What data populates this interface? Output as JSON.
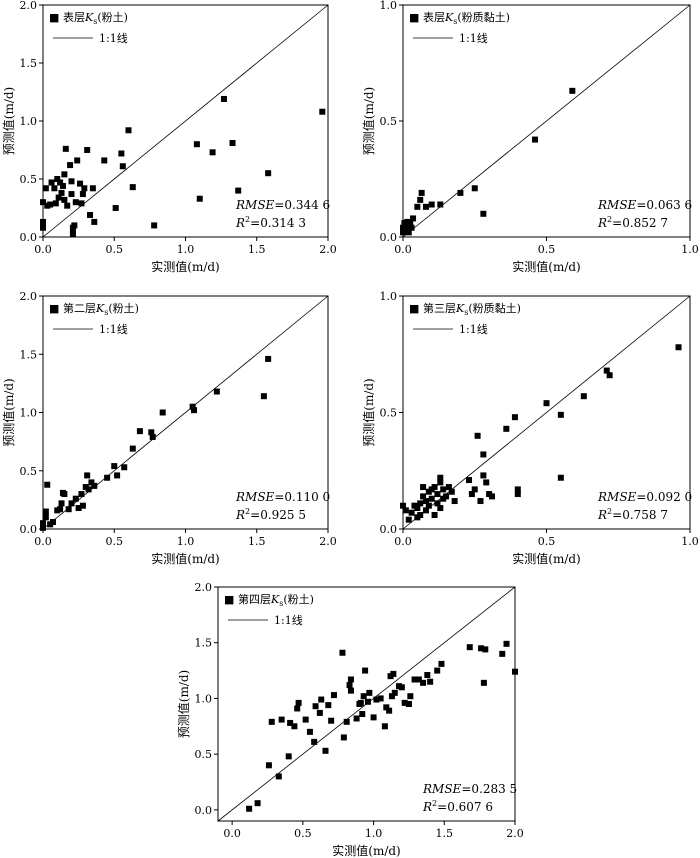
{
  "chart_data": [
    {
      "id": "p1",
      "type": "scatter",
      "legend": {
        "marker": "■",
        "name": "表层",
        "ks": "K",
        "sub": "s",
        "suffix": "(粉土)",
        "line_label": "1:1线"
      },
      "xlabel": "实测值(m/d)",
      "ylabel": "预测值(m/d)",
      "xlim": [
        0,
        2
      ],
      "ylim": [
        0,
        2
      ],
      "xticks": [
        "0.0",
        "0.5",
        "1.0",
        "1.5",
        "2.0"
      ],
      "yticks": [
        "0.0",
        "0.5",
        "1.0",
        "1.5",
        "2.0"
      ],
      "rmse_label": "RMSE",
      "rmse": "=0.344 6",
      "r2_label": "R",
      "r2_sup": "2",
      "r2": "=0.314 3",
      "reference_line": "1:1",
      "points": [
        [
          0.0,
          0.08
        ],
        [
          0.0,
          0.1
        ],
        [
          0.0,
          0.13
        ],
        [
          0.0,
          0.3
        ],
        [
          0.02,
          0.42
        ],
        [
          0.03,
          0.27
        ],
        [
          0.05,
          0.28
        ],
        [
          0.06,
          0.47
        ],
        [
          0.08,
          0.42
        ],
        [
          0.09,
          0.29
        ],
        [
          0.1,
          0.5
        ],
        [
          0.11,
          0.34
        ],
        [
          0.12,
          0.47
        ],
        [
          0.13,
          0.38
        ],
        [
          0.14,
          0.44
        ],
        [
          0.15,
          0.54
        ],
        [
          0.15,
          0.32
        ],
        [
          0.16,
          0.76
        ],
        [
          0.17,
          0.27
        ],
        [
          0.19,
          0.62
        ],
        [
          0.2,
          0.48
        ],
        [
          0.2,
          0.37
        ],
        [
          0.21,
          0.08
        ],
        [
          0.21,
          0.03
        ],
        [
          0.22,
          0.1
        ],
        [
          0.23,
          0.3
        ],
        [
          0.24,
          0.66
        ],
        [
          0.26,
          0.46
        ],
        [
          0.27,
          0.29
        ],
        [
          0.28,
          0.37
        ],
        [
          0.29,
          0.42
        ],
        [
          0.31,
          0.75
        ],
        [
          0.33,
          0.19
        ],
        [
          0.35,
          0.42
        ],
        [
          0.36,
          0.13
        ],
        [
          0.43,
          0.66
        ],
        [
          0.51,
          0.25
        ],
        [
          0.55,
          0.72
        ],
        [
          0.56,
          0.61
        ],
        [
          0.6,
          0.92
        ],
        [
          0.63,
          0.43
        ],
        [
          0.78,
          0.1
        ],
        [
          1.08,
          0.8
        ],
        [
          1.1,
          0.33
        ],
        [
          1.19,
          0.73
        ],
        [
          1.27,
          1.19
        ],
        [
          1.33,
          0.81
        ],
        [
          1.37,
          0.4
        ],
        [
          1.58,
          0.55
        ],
        [
          1.96,
          1.08
        ]
      ]
    },
    {
      "id": "p2",
      "type": "scatter",
      "legend": {
        "marker": "■",
        "name": "表层",
        "ks": "K",
        "sub": "s",
        "suffix": "(粉质黏土)",
        "line_label": "1:1线"
      },
      "xlabel": "实测值(m/d)",
      "ylabel": "预测值(m/d)",
      "xlim": [
        0,
        1
      ],
      "ylim": [
        0,
        1
      ],
      "xticks": [
        "0.0",
        "0.5",
        "1.0"
      ],
      "yticks": [
        "0.0",
        "0.5",
        "1.0"
      ],
      "rmse_label": "RMSE",
      "rmse": "=0.063 6",
      "r2_label": "R",
      "r2_sup": "2",
      "r2": "=0.852 7",
      "reference_line": "1:1",
      "points": [
        [
          0.0,
          0.02
        ],
        [
          0.0,
          0.04
        ],
        [
          0.005,
          0.06
        ],
        [
          0.01,
          0.03
        ],
        [
          0.01,
          0.05
        ],
        [
          0.015,
          0.065
        ],
        [
          0.02,
          0.02
        ],
        [
          0.025,
          0.06
        ],
        [
          0.03,
          0.04
        ],
        [
          0.035,
          0.08
        ],
        [
          0.05,
          0.13
        ],
        [
          0.06,
          0.16
        ],
        [
          0.065,
          0.19
        ],
        [
          0.08,
          0.13
        ],
        [
          0.1,
          0.14
        ],
        [
          0.13,
          0.14
        ],
        [
          0.2,
          0.19
        ],
        [
          0.25,
          0.21
        ],
        [
          0.28,
          0.1
        ],
        [
          0.46,
          0.42
        ],
        [
          0.59,
          0.63
        ]
      ]
    },
    {
      "id": "p3",
      "type": "scatter",
      "legend": {
        "marker": "■",
        "name": "第二层",
        "ks": "K",
        "sub": "s",
        "suffix": "(粉土)",
        "line_label": "1:1线"
      },
      "xlabel": "实测值(m/d)",
      "ylabel": "预测值(m/d)",
      "xlim": [
        0,
        2
      ],
      "ylim": [
        0,
        2
      ],
      "xticks": [
        "0.0",
        "0.5",
        "1.0",
        "1.5",
        "2.0"
      ],
      "yticks": [
        "0.0",
        "0.5",
        "1.0",
        "1.5",
        "2.0"
      ],
      "rmse_label": "RMSE",
      "rmse": "=0.110 0",
      "r2_label": "R",
      "r2_sup": "2",
      "r2": "=0.925 5",
      "reference_line": "1:1",
      "points": [
        [
          0.0,
          0.01
        ],
        [
          0.0,
          0.02
        ],
        [
          0.0,
          0.04
        ],
        [
          0.0,
          0.05
        ],
        [
          0.02,
          0.1
        ],
        [
          0.02,
          0.15
        ],
        [
          0.03,
          0.38
        ],
        [
          0.05,
          0.04
        ],
        [
          0.07,
          0.06
        ],
        [
          0.1,
          0.16
        ],
        [
          0.12,
          0.17
        ],
        [
          0.13,
          0.22
        ],
        [
          0.14,
          0.31
        ],
        [
          0.15,
          0.3
        ],
        [
          0.18,
          0.17
        ],
        [
          0.2,
          0.22
        ],
        [
          0.23,
          0.26
        ],
        [
          0.25,
          0.18
        ],
        [
          0.27,
          0.3
        ],
        [
          0.28,
          0.2
        ],
        [
          0.3,
          0.36
        ],
        [
          0.31,
          0.46
        ],
        [
          0.32,
          0.34
        ],
        [
          0.34,
          0.4
        ],
        [
          0.36,
          0.37
        ],
        [
          0.45,
          0.44
        ],
        [
          0.5,
          0.54
        ],
        [
          0.52,
          0.46
        ],
        [
          0.57,
          0.53
        ],
        [
          0.63,
          0.69
        ],
        [
          0.68,
          0.84
        ],
        [
          0.76,
          0.83
        ],
        [
          0.77,
          0.79
        ],
        [
          0.84,
          1.0
        ],
        [
          1.05,
          1.05
        ],
        [
          1.06,
          1.02
        ],
        [
          1.22,
          1.18
        ],
        [
          1.55,
          1.14
        ],
        [
          1.58,
          1.46
        ]
      ]
    },
    {
      "id": "p4",
      "type": "scatter",
      "legend": {
        "marker": "■",
        "name": "第三层",
        "ks": "K",
        "sub": "s",
        "suffix": "(粉质黏土)",
        "line_label": "1:1线"
      },
      "xlabel": "实测值(m/d)",
      "ylabel": "预测值(m/d)",
      "xlim": [
        0,
        1
      ],
      "ylim": [
        0,
        1
      ],
      "xticks": [
        "0.0",
        "0.5",
        "1.0"
      ],
      "yticks": [
        "0.0",
        "0.5",
        "1.0"
      ],
      "rmse_label": "RMSE",
      "rmse": "=0.092 0",
      "r2_label": "R",
      "r2_sup": "2",
      "r2": "=0.758 7",
      "reference_line": "1:1",
      "points": [
        [
          0.0,
          0.1
        ],
        [
          0.01,
          0.08
        ],
        [
          0.02,
          0.04
        ],
        [
          0.03,
          0.07
        ],
        [
          0.04,
          0.1
        ],
        [
          0.05,
          0.05
        ],
        [
          0.05,
          0.09
        ],
        [
          0.06,
          0.11
        ],
        [
          0.06,
          0.06
        ],
        [
          0.07,
          0.14
        ],
        [
          0.07,
          0.18
        ],
        [
          0.08,
          0.08
        ],
        [
          0.08,
          0.12
        ],
        [
          0.09,
          0.1
        ],
        [
          0.09,
          0.16
        ],
        [
          0.1,
          0.13
        ],
        [
          0.1,
          0.17
        ],
        [
          0.11,
          0.06
        ],
        [
          0.11,
          0.18
        ],
        [
          0.12,
          0.11
        ],
        [
          0.12,
          0.15
        ],
        [
          0.13,
          0.22
        ],
        [
          0.13,
          0.2
        ],
        [
          0.13,
          0.09
        ],
        [
          0.14,
          0.17
        ],
        [
          0.14,
          0.13
        ],
        [
          0.15,
          0.14
        ],
        [
          0.16,
          0.18
        ],
        [
          0.17,
          0.16
        ],
        [
          0.18,
          0.12
        ],
        [
          0.23,
          0.21
        ],
        [
          0.24,
          0.15
        ],
        [
          0.25,
          0.17
        ],
        [
          0.26,
          0.4
        ],
        [
          0.27,
          0.12
        ],
        [
          0.28,
          0.32
        ],
        [
          0.28,
          0.23
        ],
        [
          0.29,
          0.2
        ],
        [
          0.3,
          0.15
        ],
        [
          0.31,
          0.14
        ],
        [
          0.36,
          0.43
        ],
        [
          0.39,
          0.48
        ],
        [
          0.4,
          0.17
        ],
        [
          0.4,
          0.15
        ],
        [
          0.5,
          0.54
        ],
        [
          0.55,
          0.49
        ],
        [
          0.55,
          0.22
        ],
        [
          0.63,
          0.57
        ],
        [
          0.71,
          0.68
        ],
        [
          0.72,
          0.66
        ],
        [
          0.96,
          0.78
        ]
      ]
    },
    {
      "id": "p5",
      "type": "scatter",
      "legend": {
        "marker": "■",
        "name": "第四层",
        "ks": "K",
        "sub": "s",
        "suffix": "(粉土)",
        "line_label": "1:1线"
      },
      "xlabel": "实测值(m/d)",
      "ylabel": "预测值(m/d)",
      "xlim": [
        -0.1,
        2
      ],
      "ylim": [
        -0.1,
        2
      ],
      "xticks": [
        "0.0",
        "0.5",
        "1.0",
        "1.5",
        "2.0"
      ],
      "yticks": [
        "0.0",
        "0.5",
        "1.0",
        "1.5",
        "2.0"
      ],
      "rmse_label": "RMSE",
      "rmse": "=0.283 5",
      "r2_label": "R",
      "r2_sup": "2",
      "r2": "=0.607 6",
      "reference_line": "1:1",
      "points": [
        [
          0.12,
          0.01
        ],
        [
          0.18,
          0.06
        ],
        [
          0.26,
          0.4
        ],
        [
          0.28,
          0.79
        ],
        [
          0.33,
          0.3
        ],
        [
          0.35,
          0.81
        ],
        [
          0.4,
          0.48
        ],
        [
          0.41,
          0.78
        ],
        [
          0.44,
          0.75
        ],
        [
          0.46,
          0.91
        ],
        [
          0.47,
          0.96
        ],
        [
          0.52,
          0.81
        ],
        [
          0.55,
          0.7
        ],
        [
          0.58,
          0.61
        ],
        [
          0.59,
          0.93
        ],
        [
          0.62,
          0.87
        ],
        [
          0.63,
          0.99
        ],
        [
          0.66,
          0.53
        ],
        [
          0.68,
          0.94
        ],
        [
          0.7,
          0.8
        ],
        [
          0.72,
          1.03
        ],
        [
          0.78,
          1.41
        ],
        [
          0.79,
          0.65
        ],
        [
          0.81,
          0.79
        ],
        [
          0.83,
          1.12
        ],
        [
          0.84,
          1.07
        ],
        [
          0.84,
          1.17
        ],
        [
          0.88,
          0.82
        ],
        [
          0.9,
          0.95
        ],
        [
          0.91,
          0.96
        ],
        [
          0.92,
          0.86
        ],
        [
          0.93,
          1.02
        ],
        [
          0.94,
          1.25
        ],
        [
          0.96,
          0.97
        ],
        [
          0.97,
          1.05
        ],
        [
          1.0,
          0.83
        ],
        [
          1.02,
          0.99
        ],
        [
          1.05,
          1.0
        ],
        [
          1.08,
          0.75
        ],
        [
          1.09,
          0.92
        ],
        [
          1.11,
          0.89
        ],
        [
          1.12,
          1.2
        ],
        [
          1.13,
          1.02
        ],
        [
          1.14,
          1.22
        ],
        [
          1.15,
          1.05
        ],
        [
          1.18,
          1.11
        ],
        [
          1.2,
          1.1
        ],
        [
          1.22,
          0.96
        ],
        [
          1.25,
          0.95
        ],
        [
          1.26,
          1.02
        ],
        [
          1.29,
          1.17
        ],
        [
          1.32,
          1.17
        ],
        [
          1.35,
          1.14
        ],
        [
          1.38,
          1.21
        ],
        [
          1.4,
          1.15
        ],
        [
          1.45,
          1.25
        ],
        [
          1.48,
          1.31
        ],
        [
          1.68,
          1.46
        ],
        [
          1.76,
          1.45
        ],
        [
          1.78,
          1.14
        ],
        [
          1.79,
          1.44
        ],
        [
          1.91,
          1.4
        ],
        [
          1.94,
          1.49
        ],
        [
          2.0,
          1.24
        ]
      ]
    }
  ]
}
